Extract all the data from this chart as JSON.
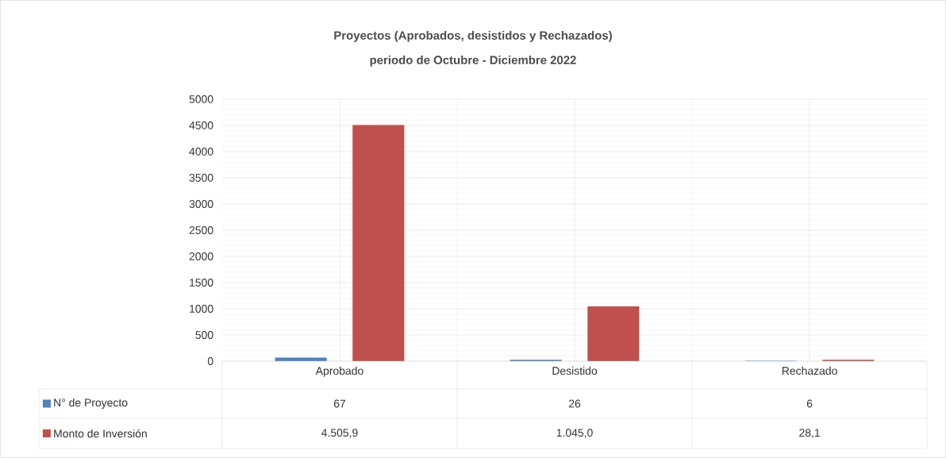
{
  "chart_data": {
    "type": "bar",
    "title": "Proyectos (Aprobados, desistidos y  Rechazados)",
    "subtitle": "periodo de Octubre - Diciembre 2022",
    "categories": [
      "Aprobado",
      "Desistido",
      "Rechazado"
    ],
    "series": [
      {
        "name": "N° de Proyecto",
        "color": "#4f81bd",
        "values": [
          67,
          26,
          6
        ],
        "value_labels": [
          "67",
          "26",
          "6"
        ]
      },
      {
        "name": "Monto de Inversión",
        "color": "#c0504d",
        "values": [
          4505.9,
          1045.0,
          28.1
        ],
        "value_labels": [
          "4.505,9",
          "1.045,0",
          "28,1"
        ]
      }
    ],
    "ylim": [
      0,
      5000
    ],
    "yticks": [
      0,
      500,
      1000,
      1500,
      2000,
      2500,
      3000,
      3500,
      4000,
      4500,
      5000
    ],
    "grid": true,
    "legend": "bottom left"
  }
}
